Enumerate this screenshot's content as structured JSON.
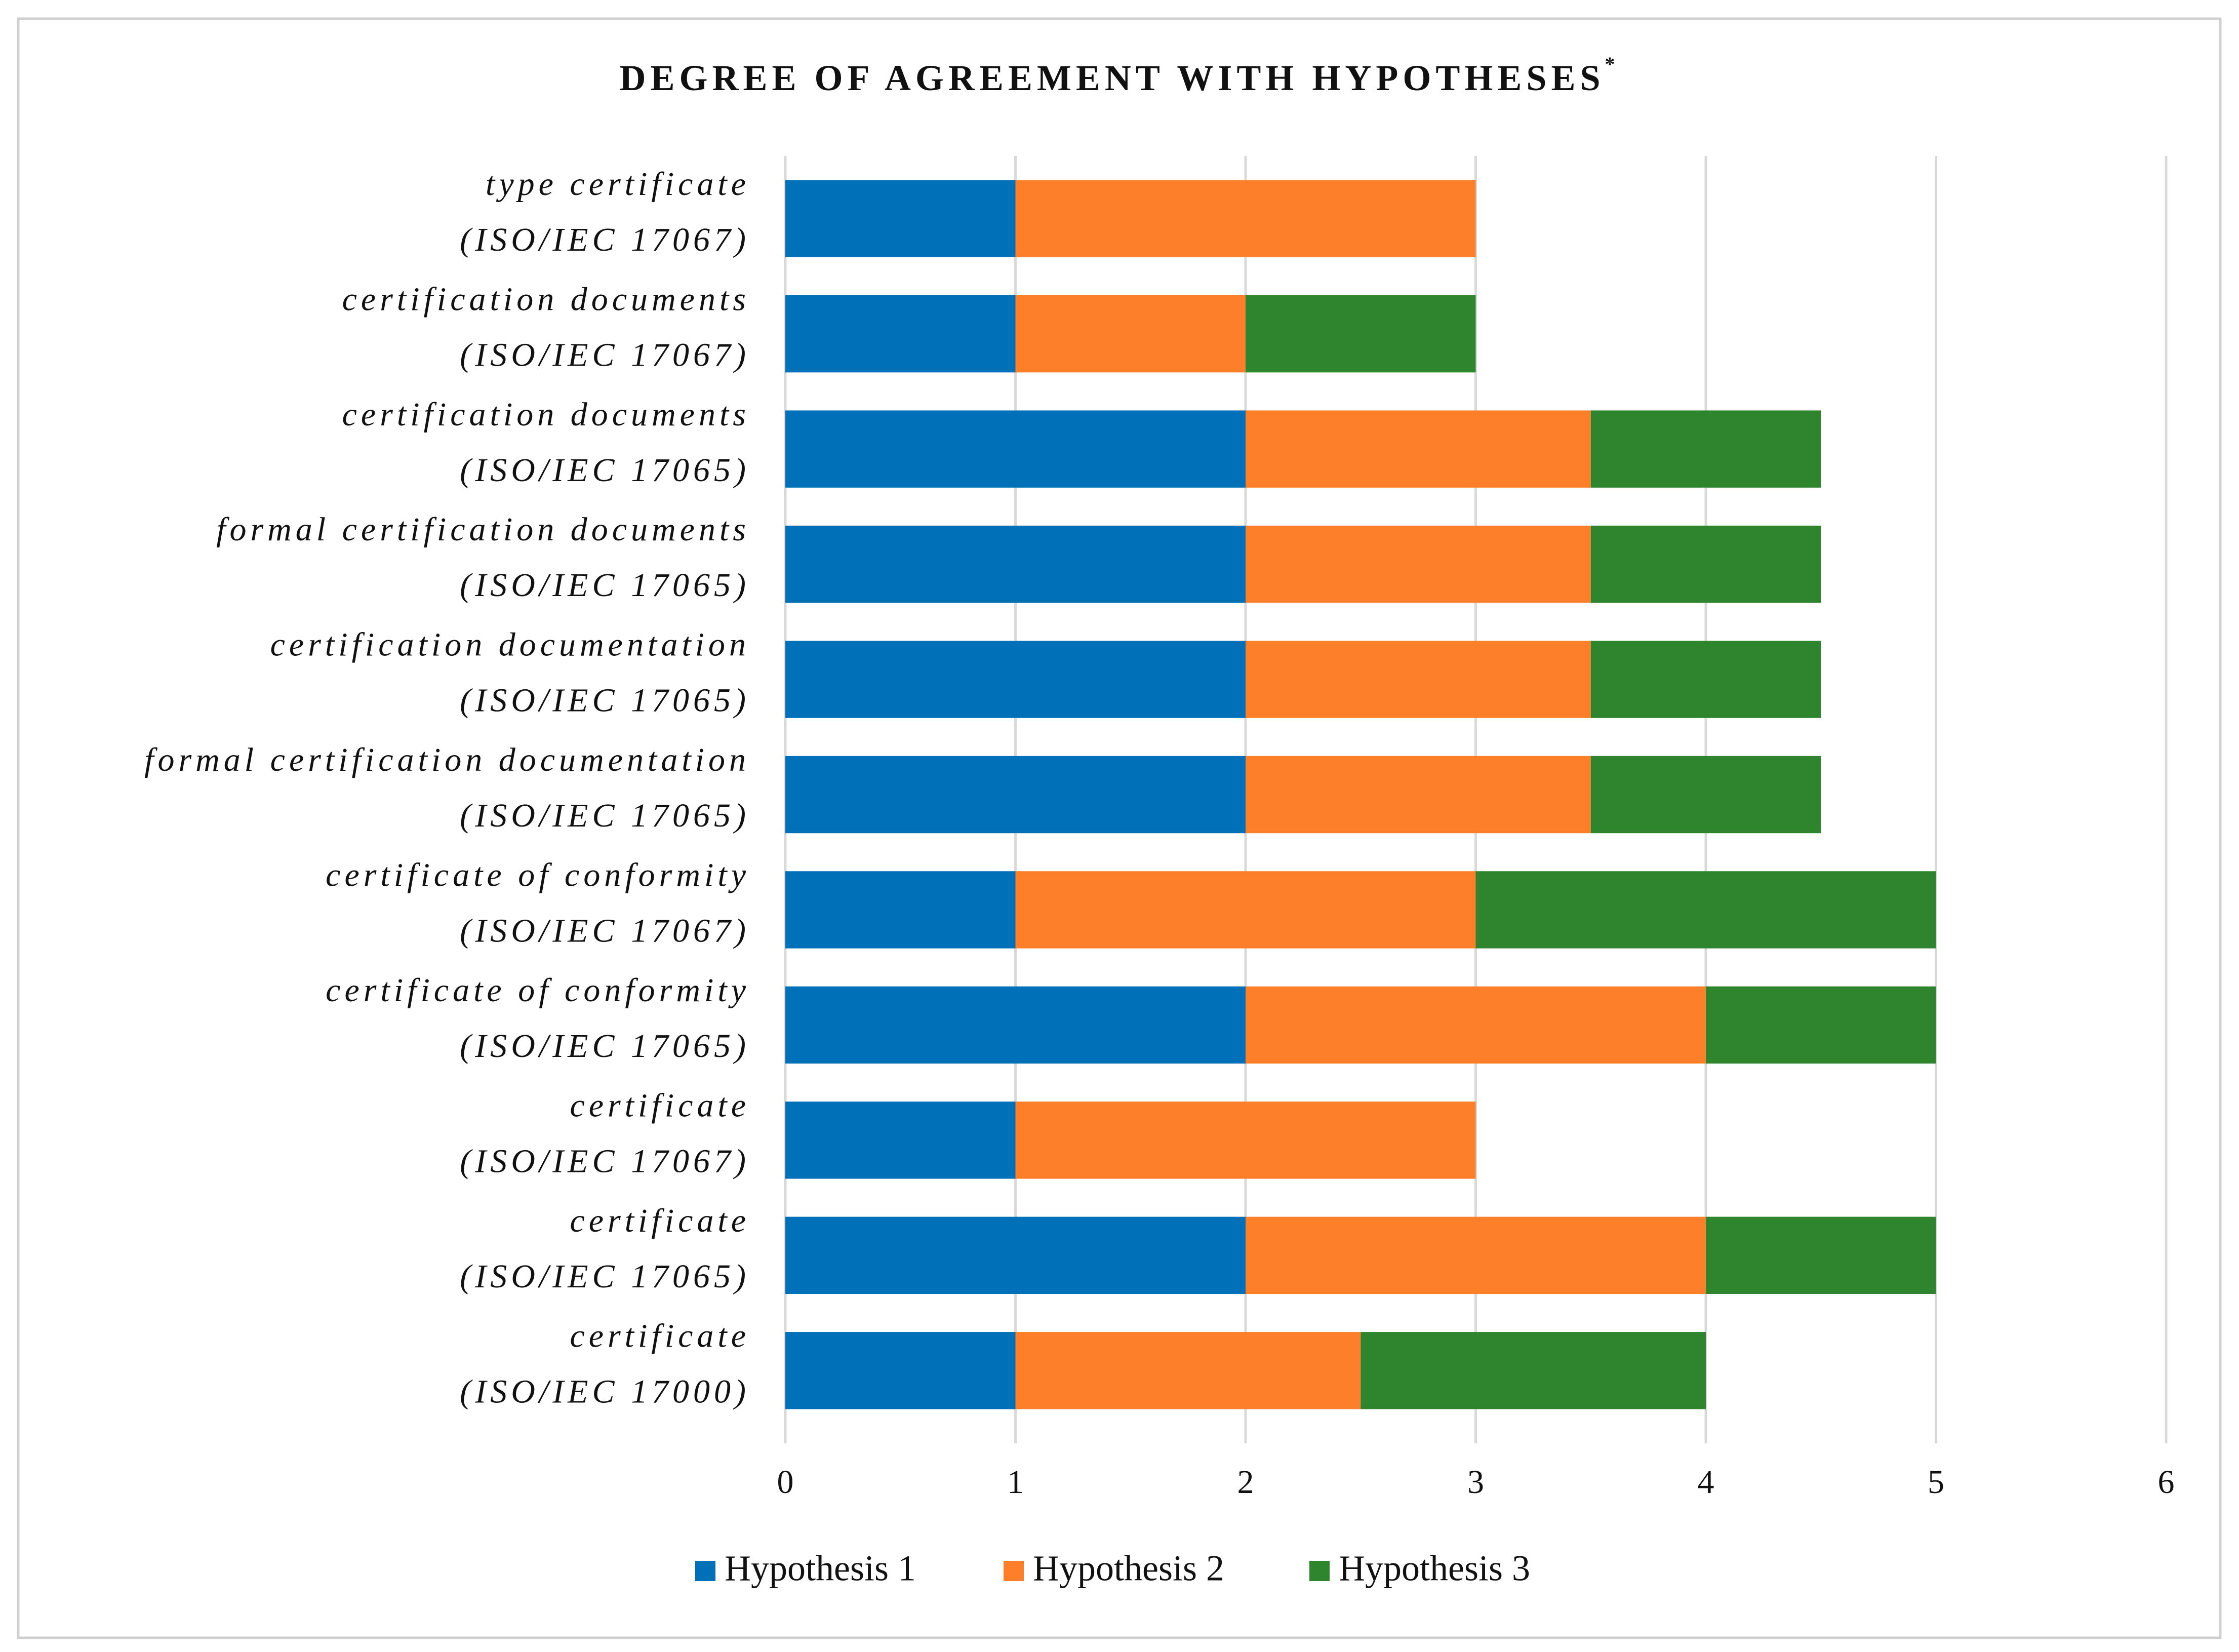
{
  "chart_data": {
    "type": "stacked-bar-horizontal",
    "title": "DEGREE OF AGREEMENT WITH HYPOTHESES",
    "title_note": "*",
    "categories": [
      [
        "type certificate",
        "(ISO/IEC 17067)"
      ],
      [
        "certification documents",
        "(ISO/IEC 17067)"
      ],
      [
        "certification documents",
        "(ISO/IEC 17065)"
      ],
      [
        "formal certification documents",
        "(ISO/IEC 17065)"
      ],
      [
        "certification documentation",
        "(ISO/IEC  17065)"
      ],
      [
        "formal certification documentation",
        "(ISO/IEC 17065)"
      ],
      [
        "certificate of conformity",
        "(ISO/IEC 17067)"
      ],
      [
        "certificate of conformity",
        "(ISO/IEC 17065)"
      ],
      [
        "certificate",
        "(ISO/IEC 17067)"
      ],
      [
        "certificate",
        "(ISO/IEC 17065)"
      ],
      [
        "certificate",
        "(ISO/IEC 17000)"
      ]
    ],
    "series": [
      {
        "name": "Hypothesis 1",
        "color": "#0070b8",
        "values": [
          1,
          1,
          2,
          2,
          2,
          2,
          1,
          2,
          1,
          2,
          1
        ]
      },
      {
        "name": "Hypothesis 2",
        "color": "#fd7f29",
        "values": [
          2,
          1,
          1.5,
          1.5,
          1.5,
          1.5,
          2,
          2,
          2,
          2,
          1.5
        ]
      },
      {
        "name": "Hypothesis 3",
        "color": "#2e852d",
        "values": [
          0,
          1,
          1,
          1,
          1,
          1,
          2,
          1,
          0,
          1,
          1.5
        ]
      }
    ],
    "xlim": [
      0,
      6
    ],
    "xticks": [
      0,
      1,
      2,
      3,
      4,
      5,
      6
    ],
    "grid": true,
    "legend": "bottom"
  }
}
